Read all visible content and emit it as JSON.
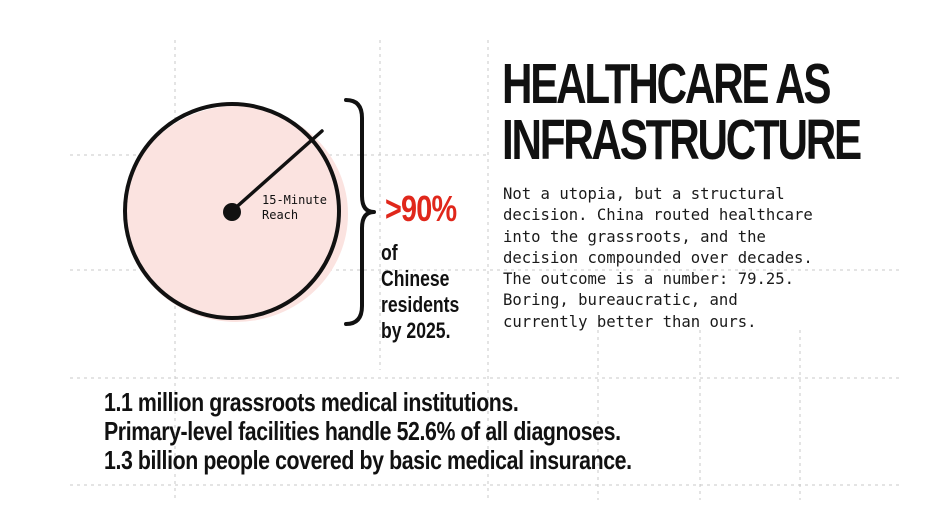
{
  "title": {
    "line1": "HEALTHCARE AS",
    "line2": "INFRASTRUCTURE"
  },
  "body_lines": [
    "Not a utopia, but a structural",
    "decision. China routed healthcare",
    "into the grassroots, and the",
    "decision compounded over decades.",
    "The outcome is a number: 79.25.",
    "Boring, bureaucratic, and",
    "currently better than ours."
  ],
  "diagram": {
    "reach_label_line1": "15-Minute",
    "reach_label_line2": "Reach",
    "stat_value": ">90%",
    "stat_caption": [
      "of",
      "Chinese",
      "residents",
      "by 2025."
    ]
  },
  "facts": [
    "1.1 million grassroots medical institutions.",
    "Primary-level facilities handle 52.6% of all diagnoses.",
    "1.3 billion people covered by basic medical insurance."
  ],
  "colors": {
    "accent_red": "#e0271b",
    "circle_fill": "#fbe3e0",
    "ink": "#111111",
    "grid": "#c8c8c8"
  }
}
